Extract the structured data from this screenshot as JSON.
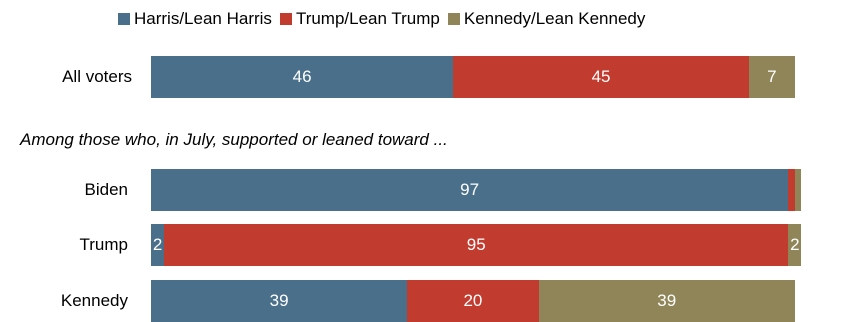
{
  "colors": {
    "harris": "#4a6f8a",
    "trump": "#c13b2e",
    "kennedy": "#908559"
  },
  "chart_data": {
    "type": "bar",
    "orientation": "horizontal",
    "stacked": true,
    "subtitle": "Among those who, in July, supported or leaned toward ...",
    "categories": [
      "All voters",
      "Biden",
      "Trump",
      "Kennedy"
    ],
    "series": [
      {
        "name": "Harris/Lean Harris",
        "key": "harris",
        "values": [
          46,
          97,
          2,
          39
        ],
        "labels": [
          "46",
          "97",
          "2",
          "39"
        ]
      },
      {
        "name": "Trump/Lean Trump",
        "key": "trump",
        "values": [
          45,
          1,
          95,
          20
        ],
        "labels": [
          "45",
          "",
          "95",
          "20"
        ]
      },
      {
        "name": "Kennedy/Lean Kennedy",
        "key": "kennedy",
        "values": [
          7,
          1,
          2,
          39
        ],
        "labels": [
          "7",
          "",
          "2",
          "39"
        ]
      }
    ],
    "xlim": [
      0,
      100
    ],
    "legend_position": "top"
  }
}
